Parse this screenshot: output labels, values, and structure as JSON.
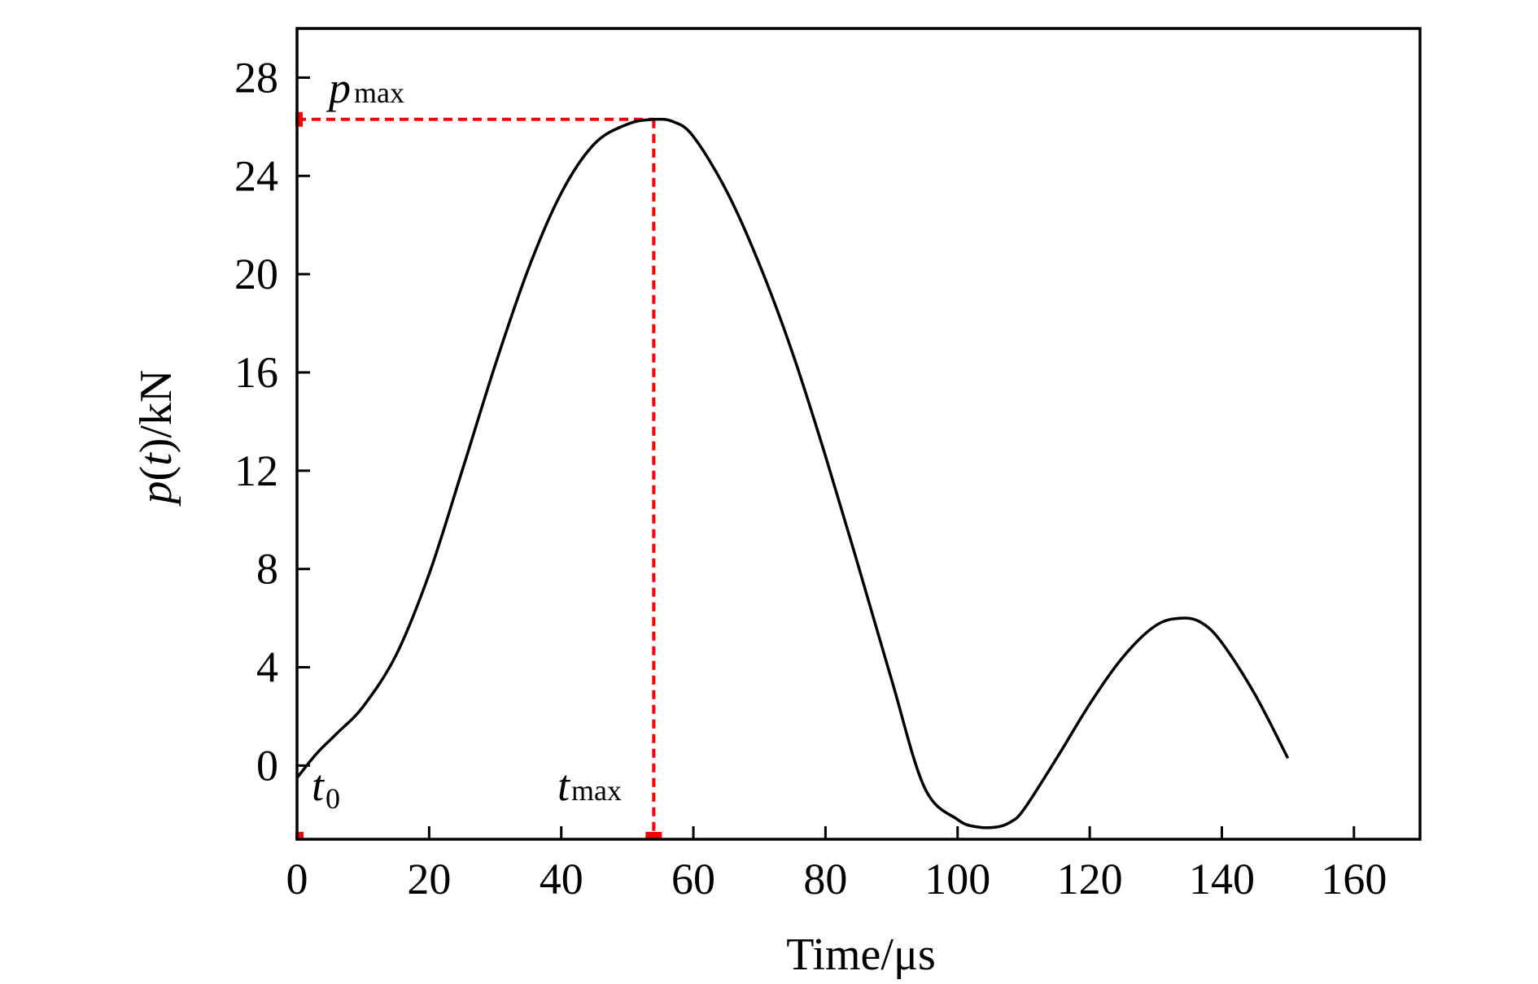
{
  "chart_data": {
    "type": "line",
    "xlabel": "Time/μs",
    "ylabel": {
      "var": "p",
      "open": "(",
      "arg": "t",
      "close": ")/kN"
    },
    "xlim": [
      0,
      170
    ],
    "ylim": [
      -3,
      30
    ],
    "xticks": [
      0,
      20,
      40,
      60,
      80,
      100,
      120,
      140,
      160
    ],
    "yticks": [
      0,
      4,
      8,
      12,
      16,
      20,
      24,
      28
    ],
    "grid": false,
    "series": [
      {
        "color": "#000000",
        "x": [
          0,
          3,
          6,
          10,
          15,
          20,
          25,
          30,
          35,
          40,
          45,
          50,
          54,
          57,
          60,
          65,
          70,
          75,
          80,
          85,
          90,
          95,
          100,
          103,
          106,
          108,
          110,
          115,
          120,
          125,
          130,
          134,
          137,
          140,
          145,
          150
        ],
        "y": [
          -0.5,
          0.5,
          1.3,
          2.4,
          4.5,
          7.8,
          12.0,
          16.3,
          20.2,
          23.3,
          25.3,
          26.1,
          26.3,
          26.2,
          25.6,
          23.4,
          20.4,
          16.8,
          12.6,
          8.1,
          3.5,
          -0.9,
          -2.2,
          -2.5,
          -2.5,
          -2.3,
          -1.8,
          0.3,
          2.5,
          4.4,
          5.7,
          6.0,
          5.8,
          5.0,
          2.9,
          0.3
        ]
      }
    ],
    "annotations": {
      "color": "#ff0000",
      "peak": {
        "x": 54,
        "y": 26.3
      },
      "pmax": {
        "main": "p",
        "sub": "max"
      },
      "tmax": {
        "main": "t",
        "sub": "max"
      },
      "t0": {
        "main": "t",
        "sub": "0"
      }
    }
  }
}
